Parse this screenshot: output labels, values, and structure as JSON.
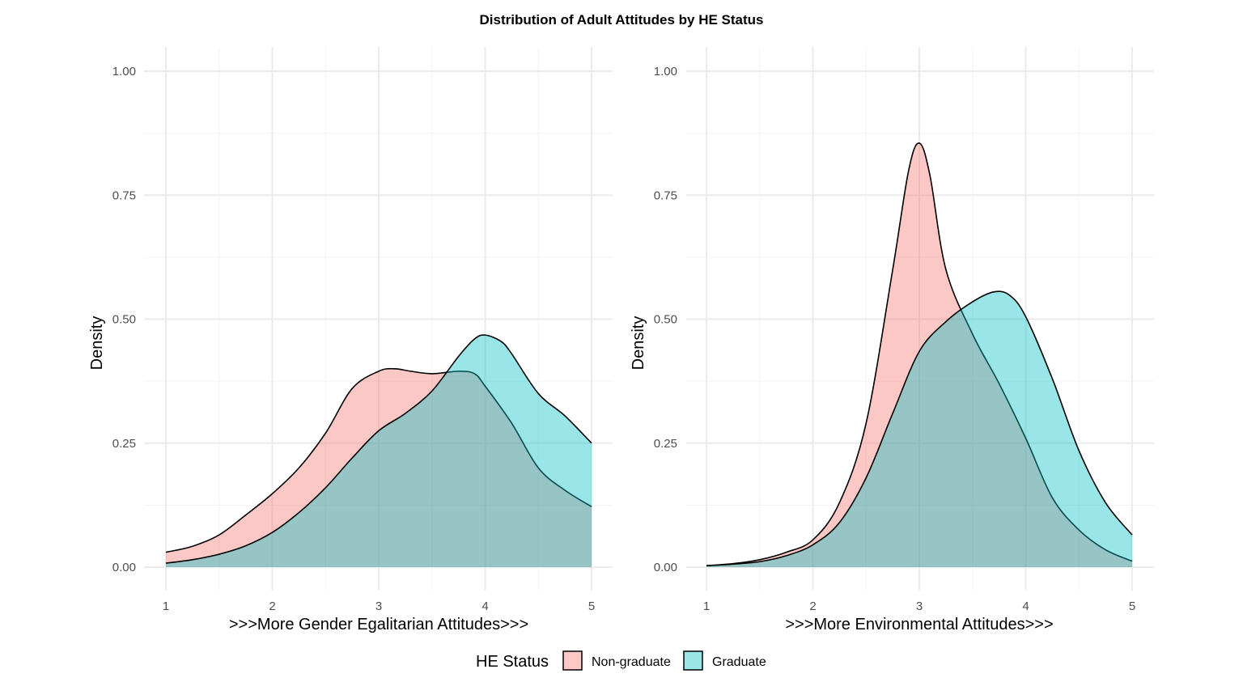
{
  "title": "Distribution of Adult Attitudes by HE Status",
  "legend": {
    "title": "HE Status",
    "items": [
      {
        "label": "Non-graduate",
        "color": "#F8766D"
      },
      {
        "label": "Graduate",
        "color": "#00BFC4"
      }
    ]
  },
  "chart_data": [
    {
      "type": "area",
      "xlabel": ">>>More Gender Egalitarian Attitudes>>>",
      "ylabel": "Density",
      "xlim": [
        1,
        5
      ],
      "ylim": [
        0,
        1
      ],
      "xticks": [
        "1",
        "2",
        "3",
        "4",
        "5"
      ],
      "yticks": [
        "0.00",
        "0.25",
        "0.50",
        "0.75",
        "1.00"
      ],
      "grid": true,
      "series": [
        {
          "name": "Non-graduate",
          "color": "#F8766D",
          "x": [
            1.0,
            1.25,
            1.5,
            1.75,
            2.0,
            2.25,
            2.5,
            2.75,
            3.0,
            3.15,
            3.3,
            3.5,
            3.75,
            3.9,
            4.0,
            4.25,
            4.5,
            4.75,
            5.0
          ],
          "y": [
            0.03,
            0.042,
            0.065,
            0.105,
            0.148,
            0.2,
            0.27,
            0.36,
            0.395,
            0.4,
            0.395,
            0.39,
            0.395,
            0.39,
            0.365,
            0.29,
            0.2,
            0.155,
            0.122
          ]
        },
        {
          "name": "Graduate",
          "color": "#00BFC4",
          "x": [
            1.0,
            1.25,
            1.5,
            1.75,
            2.0,
            2.25,
            2.5,
            2.75,
            3.0,
            3.25,
            3.5,
            3.75,
            3.9,
            4.0,
            4.15,
            4.25,
            4.5,
            4.75,
            5.0
          ],
          "y": [
            0.008,
            0.015,
            0.026,
            0.043,
            0.07,
            0.11,
            0.16,
            0.22,
            0.275,
            0.31,
            0.355,
            0.425,
            0.46,
            0.468,
            0.455,
            0.43,
            0.35,
            0.305,
            0.25
          ]
        }
      ]
    },
    {
      "type": "area",
      "xlabel": ">>>More Environmental Attitudes>>>",
      "ylabel": "Density",
      "xlim": [
        1,
        5
      ],
      "ylim": [
        0,
        1
      ],
      "xticks": [
        "1",
        "2",
        "3",
        "4",
        "5"
      ],
      "yticks": [
        "0.00",
        "0.25",
        "0.50",
        "0.75",
        "1.00"
      ],
      "grid": true,
      "series": [
        {
          "name": "Non-graduate",
          "color": "#F8766D",
          "x": [
            1.0,
            1.25,
            1.5,
            1.75,
            2.0,
            2.25,
            2.5,
            2.75,
            2.9,
            3.0,
            3.1,
            3.25,
            3.5,
            3.75,
            4.0,
            4.25,
            4.5,
            4.75,
            5.0
          ],
          "y": [
            0.003,
            0.007,
            0.015,
            0.03,
            0.055,
            0.13,
            0.29,
            0.6,
            0.8,
            0.855,
            0.79,
            0.6,
            0.47,
            0.37,
            0.26,
            0.14,
            0.075,
            0.035,
            0.012
          ]
        },
        {
          "name": "Graduate",
          "color": "#00BFC4",
          "x": [
            1.0,
            1.25,
            1.5,
            1.75,
            2.0,
            2.25,
            2.5,
            2.75,
            3.0,
            3.25,
            3.5,
            3.7,
            3.85,
            4.0,
            4.25,
            4.5,
            4.75,
            5.0
          ],
          "y": [
            0.003,
            0.006,
            0.011,
            0.023,
            0.045,
            0.09,
            0.18,
            0.31,
            0.435,
            0.495,
            0.535,
            0.555,
            0.548,
            0.505,
            0.38,
            0.235,
            0.13,
            0.065
          ]
        }
      ]
    }
  ]
}
